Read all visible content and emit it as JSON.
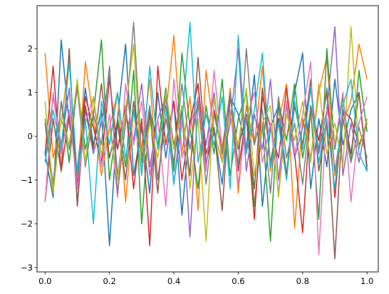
{
  "chart_data": {
    "type": "line",
    "x": [
      0,
      0.025,
      0.05,
      0.075,
      0.1,
      0.125,
      0.15,
      0.175,
      0.2,
      0.225,
      0.25,
      0.275,
      0.3,
      0.325,
      0.35,
      0.375,
      0.4,
      0.425,
      0.45,
      0.475,
      0.5,
      0.525,
      0.55,
      0.575,
      0.6,
      0.625,
      0.65,
      0.675,
      0.7,
      0.725,
      0.75,
      0.775,
      0.8,
      0.825,
      0.85,
      0.875,
      0.9,
      0.925,
      0.95,
      0.975,
      1
    ],
    "series": [
      {
        "color": "#1f77b4",
        "values": [
          -0.4,
          -1.4,
          2.2,
          0.3,
          -0.8,
          1.1,
          -0.2,
          0.6,
          -2.5,
          0.4,
          2.1,
          -0.9,
          0.2,
          -1.3,
          1.0,
          -0.5,
          0.8,
          -1.8,
          0.3,
          1.2,
          -0.6,
          0.1,
          -1.1,
          0.9,
          0.5,
          -0.3,
          1.4,
          -1.6,
          0.2,
          0.7,
          -0.9,
          1.0,
          1.9,
          -1.2,
          0.4,
          -0.7,
          1.3,
          -0.2,
          0.6,
          1.0,
          -0.8
        ]
      },
      {
        "color": "#ff7f0e",
        "values": [
          1.9,
          -0.5,
          0.3,
          1.8,
          -1.2,
          1.7,
          0.4,
          -0.9,
          0.2,
          1.0,
          -1.5,
          0.6,
          -0.3,
          1.3,
          -1.0,
          0.5,
          2.3,
          -0.4,
          0.9,
          -1.7,
          1.5,
          0.1,
          -0.6,
          1.1,
          -1.3,
          0.7,
          -0.2,
          1.6,
          -0.8,
          0.3,
          1.2,
          -2.1,
          0.4,
          -0.5,
          1.0,
          1.8,
          -0.9,
          0.3,
          0.8,
          2.1,
          1.3
        ]
      },
      {
        "color": "#2ca02c",
        "values": [
          0.3,
          -1.3,
          0.8,
          -0.6,
          1.2,
          -0.3,
          0.5,
          2.2,
          -1.0,
          0.4,
          -0.7,
          1.5,
          -2.0,
          0.6,
          -0.2,
          1.1,
          -0.8,
          1.9,
          0.2,
          -1.2,
          0.7,
          -0.4,
          1.3,
          -0.9,
          0.4,
          1.0,
          -1.6,
          0.3,
          -2.4,
          0.8,
          -0.1,
          1.2,
          -0.5,
          0.6,
          -1.9,
          2.0,
          -0.3,
          0.9,
          -0.6,
          1.5,
          0.1
        ]
      },
      {
        "color": "#d62728",
        "values": [
          -0.4,
          1.6,
          -0.8,
          0.5,
          -1.1,
          0.9,
          0.2,
          -0.6,
          1.3,
          -0.3,
          0.7,
          -1.2,
          0.4,
          -2.5,
          1.6,
          -0.2,
          0.8,
          -1.0,
          0.3,
          1.2,
          -0.7,
          0.6,
          -0.3,
          1.0,
          -0.8,
          0.5,
          -1.9,
          0.9,
          0.2,
          -0.5,
          1.1,
          -0.4,
          -2.2,
          0.7,
          -0.1,
          1.0,
          -1.4,
          0.6,
          0.4,
          -0.2,
          0.3
        ]
      },
      {
        "color": "#9467bd",
        "values": [
          -0.6,
          0.9,
          -0.2,
          1.1,
          -1.5,
          0.6,
          -0.4,
          0.3,
          1.4,
          -0.9,
          0.5,
          -0.1,
          1.2,
          -0.7,
          0.4,
          0.9,
          -1.1,
          0.6,
          -2.3,
          0.8,
          -0.2,
          1.0,
          -0.6,
          0.3,
          2.0,
          -0.8,
          0.5,
          -0.3,
          1.3,
          -1.0,
          0.7,
          -0.5,
          0.2,
          1.1,
          -0.4,
          0.6,
          2.5,
          -0.9,
          0.3,
          -0.6,
          0.4
        ]
      },
      {
        "color": "#8c564b",
        "values": [
          -1.5,
          0.4,
          -0.8,
          2.0,
          -1.6,
          0.7,
          -0.3,
          1.2,
          -0.5,
          0.3,
          -1.0,
          0.8,
          -0.6,
          0.5,
          -1.3,
          1.0,
          -0.2,
          0.6,
          -0.9,
          1.8,
          -0.4,
          0.2,
          -1.7,
          0.9,
          -0.3,
          0.5,
          -1.2,
          1.1,
          -0.6,
          0.4,
          -0.9,
          0.7,
          -0.2,
          1.3,
          -0.8,
          0.3,
          -2.8,
          0.6,
          -0.4,
          1.0,
          -0.7
        ]
      },
      {
        "color": "#e377c2",
        "values": [
          -1.5,
          1.0,
          -0.4,
          0.6,
          -1.2,
          0.3,
          0.9,
          -0.7,
          0.5,
          -1.4,
          1.2,
          -0.2,
          0.8,
          -0.9,
          0.4,
          -1.6,
          1.3,
          -0.5,
          0.2,
          0.9,
          -0.8,
          1.5,
          -0.3,
          0.6,
          -1.1,
          0.4,
          1.0,
          -0.6,
          0.3,
          -1.3,
          0.8,
          -0.4,
          0.5,
          1.7,
          -2.7,
          0.6,
          -0.2,
          1.0,
          -1.5,
          0.3,
          0.9
        ]
      },
      {
        "color": "#7f7f7f",
        "values": [
          0.4,
          -1.1,
          0.8,
          -0.3,
          1.1,
          -0.7,
          0.5,
          -0.2,
          1.6,
          -1.3,
          0.3,
          2.6,
          -0.5,
          0.7,
          -1.0,
          0.4,
          -0.6,
          1.2,
          -0.3,
          0.8,
          -1.1,
          0.5,
          -0.4,
          1.0,
          -0.7,
          2.0,
          -0.2,
          0.6,
          -1.3,
          0.9,
          -0.5,
          0.3,
          -1.1,
          0.7,
          -0.3,
          1.1,
          -0.8,
          0.4,
          -0.6,
          0.2,
          -0.5
        ]
      },
      {
        "color": "#bcbd22",
        "values": [
          0.8,
          -1.3,
          0.4,
          -0.2,
          1.3,
          -0.6,
          0.9,
          -0.4,
          0.2,
          -1.0,
          0.6,
          2.1,
          -0.8,
          0.3,
          -0.5,
          1.0,
          -0.3,
          0.7,
          -1.2,
          0.4,
          -2.4,
          0.9,
          -0.6,
          0.5,
          -0.2,
          1.1,
          -0.9,
          0.3,
          0.7,
          -1.4,
          0.5,
          -0.1,
          0.8,
          -0.6,
          1.2,
          -0.4,
          0.3,
          -0.7,
          2.5,
          -0.3,
          0.4
        ]
      },
      {
        "color": "#17becf",
        "values": [
          -0.6,
          0.6,
          -0.3,
          1.7,
          -0.9,
          0.4,
          -2.0,
          0.8,
          -0.2,
          1.0,
          -0.5,
          0.6,
          -0.9,
          1.6,
          -0.3,
          0.7,
          -1.1,
          0.3,
          2.6,
          -0.6,
          0.5,
          -0.2,
          0.9,
          -1.2,
          2.3,
          -0.4,
          0.6,
          1.9,
          -0.7,
          0.3,
          -1.0,
          0.8,
          -0.3,
          1.1,
          -0.6,
          0.4,
          -1.2,
          0.7,
          1.3,
          -0.4,
          -0.8
        ]
      }
    ],
    "xlim": [
      -0.025,
      1.035
    ],
    "ylim": [
      -3.1,
      2.98
    ],
    "xticks": [
      {
        "value": 0,
        "label": "0.0"
      },
      0.2,
      0.4,
      0.6,
      0.8,
      {
        "value": 1,
        "label": "1.0"
      }
    ],
    "yticks": [
      {
        "value": -3,
        "label": "−3"
      },
      {
        "value": -2,
        "label": "−2"
      },
      {
        "value": -1,
        "label": "−1"
      },
      0,
      1,
      2
    ],
    "grid": false
  }
}
